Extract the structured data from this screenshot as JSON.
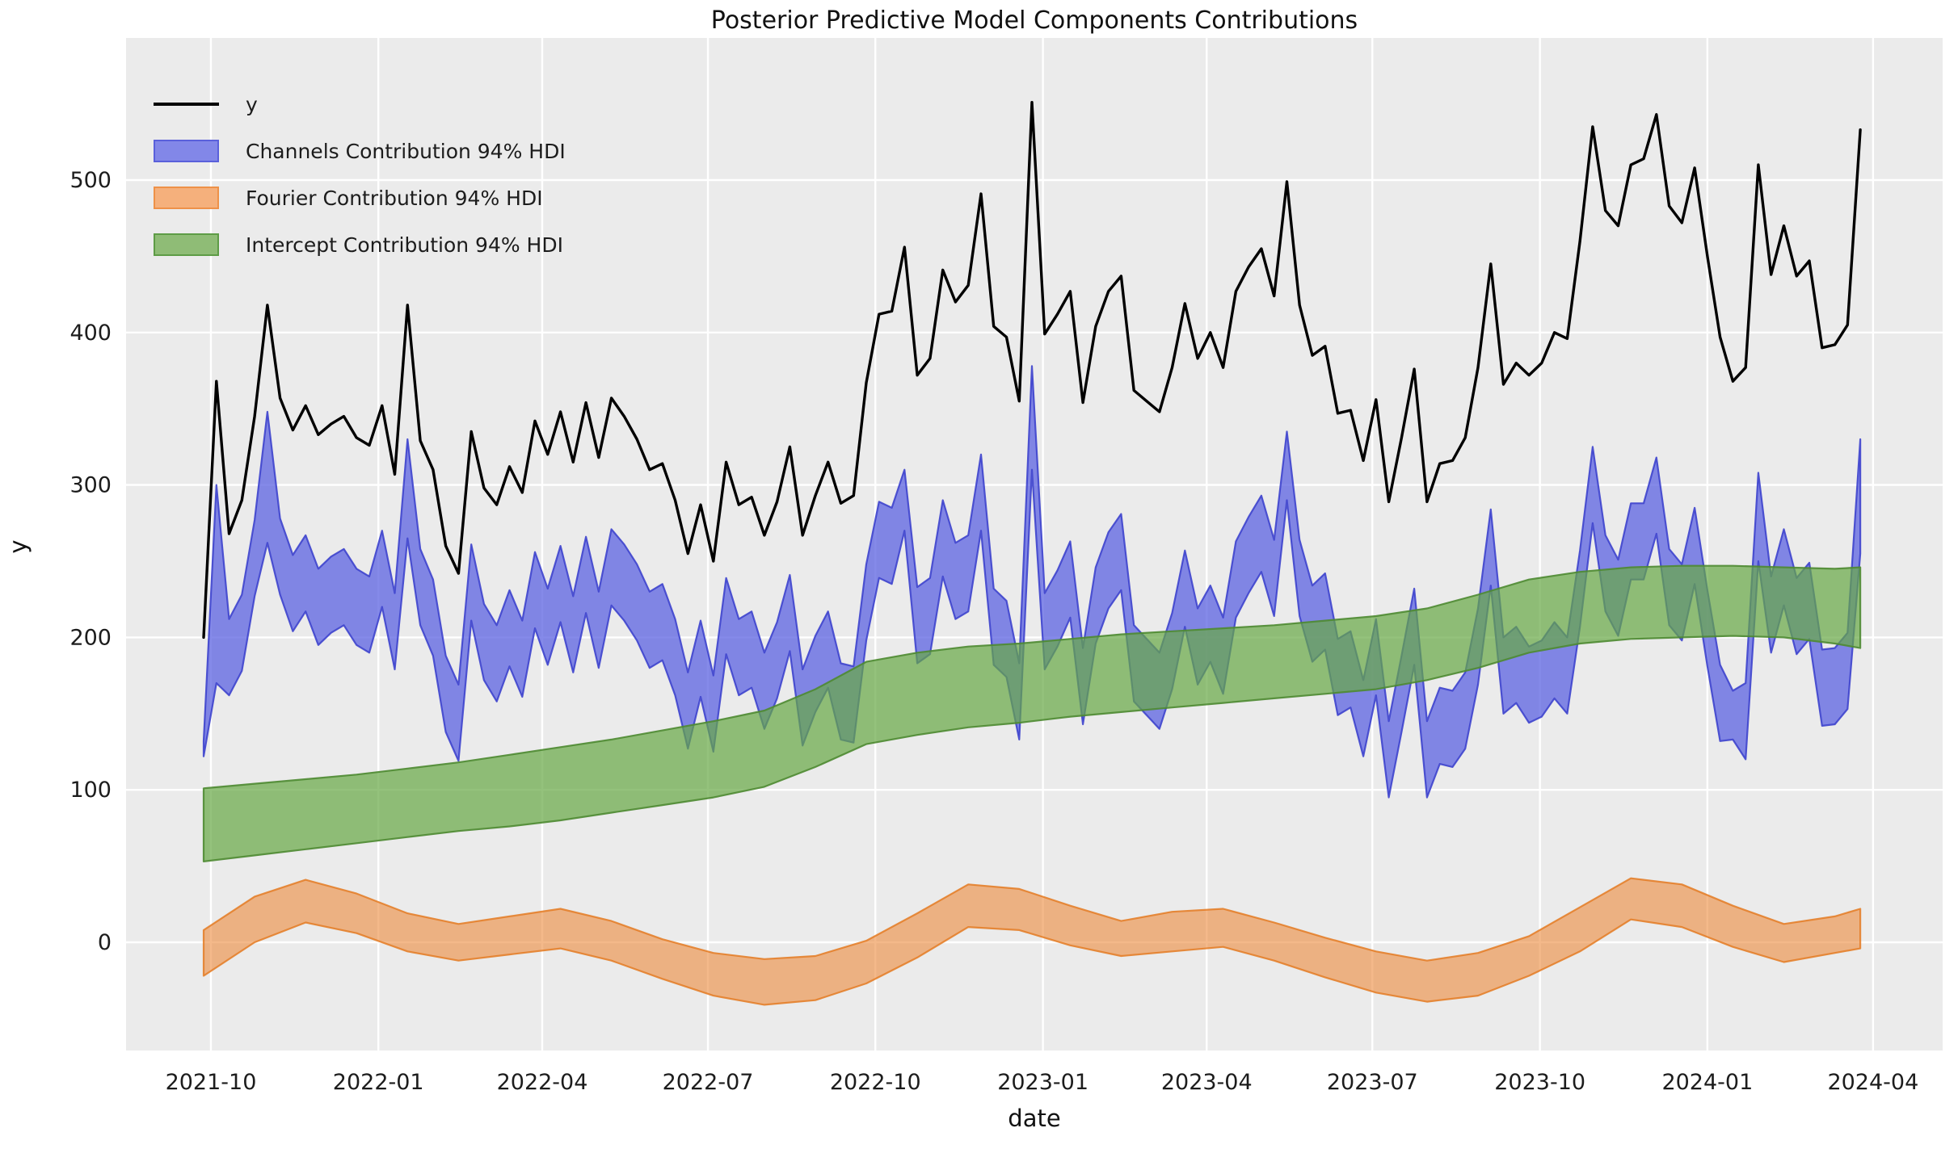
{
  "chart_data": {
    "type": "line+area-bands",
    "title": "Posterior Predictive Model Components Contributions",
    "xlabel": "date",
    "ylabel": "y",
    "x_unit": "weekly observations, week index from first point (2021-09-27) to last (2024-04)",
    "grid": true,
    "legend_position": "upper left",
    "axes": {
      "yticks": [
        0,
        100,
        200,
        300,
        400,
        500
      ],
      "xticks": [
        {
          "label": "2021-10",
          "week": 0.57
        },
        {
          "label": "2022-01",
          "week": 13.71
        },
        {
          "label": "2022-04",
          "week": 26.57
        },
        {
          "label": "2022-07",
          "week": 39.57
        },
        {
          "label": "2022-10",
          "week": 52.71
        },
        {
          "label": "2023-01",
          "week": 65.86
        },
        {
          "label": "2023-04",
          "week": 78.71
        },
        {
          "label": "2023-07",
          "week": 91.71
        },
        {
          "label": "2023-10",
          "week": 104.86
        },
        {
          "label": "2024-01",
          "week": 118.0
        },
        {
          "label": "2024-04",
          "week": 131.0
        }
      ],
      "ylim": [
        -71,
        593
      ]
    },
    "series": [
      {
        "name": "y",
        "kind": "line",
        "values": [
          200,
          368,
          268,
          290,
          345,
          418,
          357,
          336,
          352,
          333,
          340,
          345,
          331,
          326,
          352,
          307,
          418,
          329,
          310,
          260,
          242,
          335,
          298,
          287,
          312,
          295,
          342,
          320,
          348,
          315,
          354,
          318,
          357,
          345,
          330,
          310,
          314,
          290,
          255,
          287,
          250,
          315,
          287,
          292,
          267,
          289,
          325,
          267,
          293,
          315,
          288,
          293,
          367,
          412,
          414,
          456,
          372,
          383,
          441,
          420,
          431,
          491,
          404,
          397,
          355,
          551,
          399,
          412,
          427,
          354,
          404,
          427,
          437,
          362,
          355,
          348,
          377,
          419,
          383,
          400,
          377,
          427,
          443,
          455,
          424,
          499,
          418,
          385,
          391,
          347,
          349,
          316,
          356,
          289,
          331,
          376,
          289,
          314,
          316,
          331,
          377,
          445,
          366,
          380,
          372,
          380,
          400,
          396,
          460,
          535,
          480,
          470,
          510,
          514,
          543,
          483,
          472,
          508,
          450,
          397,
          368,
          377,
          510,
          438,
          470,
          437,
          447,
          390,
          392,
          405,
          533
        ]
      },
      {
        "name": "Channels Contribution 94% HDI",
        "kind": "band",
        "upper": [
          132,
          300,
          212,
          228,
          277,
          348,
          278,
          254,
          267,
          245,
          253,
          258,
          245,
          240,
          270,
          229,
          330,
          258,
          238,
          188,
          169,
          261,
          222,
          208,
          231,
          211,
          256,
          232,
          260,
          227,
          266,
          230,
          271,
          261,
          248,
          230,
          235,
          212,
          177,
          211,
          175,
          239,
          212,
          217,
          190,
          210,
          241,
          179,
          201,
          217,
          183,
          181,
          248,
          289,
          285,
          310,
          233,
          239,
          290,
          262,
          267,
          320,
          232,
          224,
          183,
          378,
          229,
          244,
          263,
          193,
          246,
          269,
          281,
          208,
          199,
          190,
          216,
          257,
          219,
          234,
          213,
          263,
          279,
          293,
          264,
          335,
          264,
          234,
          242,
          199,
          204,
          172,
          212,
          145,
          188,
          232,
          145,
          167,
          165,
          177,
          219,
          284,
          200,
          207,
          194,
          198,
          210,
          200,
          257,
          325,
          267,
          251,
          288,
          288,
          318,
          258,
          248,
          285,
          231,
          182,
          165,
          170,
          308,
          240,
          271,
          239,
          249,
          192,
          193,
          203,
          330
        ],
        "lower": [
          122,
          170,
          162,
          178,
          227,
          262,
          228,
          204,
          217,
          195,
          203,
          208,
          195,
          190,
          220,
          179,
          265,
          208,
          188,
          138,
          119,
          211,
          172,
          158,
          181,
          161,
          206,
          182,
          210,
          177,
          216,
          180,
          221,
          211,
          198,
          180,
          185,
          162,
          127,
          161,
          125,
          189,
          162,
          167,
          140,
          160,
          191,
          129,
          151,
          167,
          133,
          131,
          198,
          239,
          235,
          270,
          183,
          189,
          240,
          212,
          217,
          270,
          182,
          174,
          133,
          310,
          179,
          194,
          213,
          143,
          196,
          219,
          231,
          158,
          149,
          140,
          166,
          207,
          169,
          184,
          163,
          213,
          229,
          243,
          214,
          290,
          214,
          184,
          192,
          149,
          154,
          122,
          162,
          95,
          138,
          182,
          95,
          117,
          115,
          127,
          169,
          234,
          150,
          157,
          144,
          148,
          160,
          150,
          207,
          275,
          217,
          201,
          238,
          238,
          268,
          208,
          198,
          235,
          181,
          132,
          133,
          120,
          250,
          190,
          221,
          189,
          199,
          142,
          143,
          153,
          255
        ]
      },
      {
        "name": "Fourier Contribution 94% HDI",
        "kind": "band",
        "x": [
          0,
          4,
          8,
          12,
          16,
          20,
          24,
          28,
          32,
          36,
          40,
          44,
          48,
          52,
          56,
          60,
          64,
          68,
          72,
          76,
          80,
          84,
          88,
          92,
          96,
          100,
          104,
          108,
          112,
          116,
          120,
          124,
          128,
          130
        ],
        "upper": [
          8,
          30,
          41,
          32,
          19,
          12,
          17,
          22,
          14,
          2,
          -7,
          -11,
          -9,
          1,
          19,
          38,
          35,
          24,
          14,
          20,
          22,
          13,
          3,
          -6,
          -12,
          -7,
          4,
          23,
          42,
          38,
          24,
          12,
          17,
          22
        ],
        "lower": [
          -22,
          0,
          13,
          6,
          -6,
          -12,
          -8,
          -4,
          -12,
          -24,
          -35,
          -41,
          -38,
          -27,
          -10,
          10,
          8,
          -2,
          -9,
          -6,
          -3,
          -12,
          -23,
          -33,
          -39,
          -35,
          -22,
          -6,
          15,
          10,
          -3,
          -13,
          -7,
          -4
        ]
      },
      {
        "name": "Intercept Contribution 94% HDI",
        "kind": "band",
        "x": [
          0,
          4,
          8,
          12,
          16,
          20,
          24,
          28,
          32,
          36,
          40,
          44,
          48,
          52,
          56,
          60,
          64,
          68,
          72,
          76,
          80,
          84,
          88,
          92,
          96,
          100,
          104,
          108,
          112,
          116,
          120,
          124,
          128,
          130
        ],
        "upper": [
          101,
          104,
          107,
          110,
          114,
          118,
          123,
          128,
          133,
          139,
          145,
          152,
          166,
          184,
          190,
          194,
          196,
          199,
          202,
          204,
          206,
          208,
          211,
          214,
          219,
          228,
          238,
          243,
          246,
          247,
          247,
          246,
          245,
          246
        ],
        "lower": [
          53,
          57,
          61,
          65,
          69,
          73,
          76,
          80,
          85,
          90,
          95,
          102,
          115,
          130,
          136,
          141,
          144,
          148,
          151,
          154,
          157,
          160,
          163,
          166,
          172,
          180,
          190,
          196,
          199,
          200,
          201,
          200,
          196,
          193
        ]
      }
    ]
  },
  "legend": {
    "items": [
      {
        "label": "y",
        "swatch": "line",
        "color": "#000000"
      },
      {
        "label": "Channels Contribution 94% HDI",
        "swatch": "patch",
        "fill": "#8287e8",
        "edge": "#5a60db"
      },
      {
        "label": "Fourier Contribution 94% HDI",
        "swatch": "patch",
        "fill": "#f5b07c",
        "edge": "#ee9148"
      },
      {
        "label": "Intercept Contribution 94% HDI",
        "swatch": "patch",
        "fill": "#8fbc76",
        "edge": "#5e9c46"
      }
    ]
  },
  "colors": {
    "figure_background": "#ffffff",
    "axes_background": "#ebebeb",
    "gridline": "#ffffff",
    "y_line": "#000000",
    "channels_fill": "rgba(86,93,224,0.72)",
    "channels_edge": "rgba(62,68,205,0.9)",
    "fourier_fill": "rgba(238,142,66,0.62)",
    "fourier_edge": "rgba(228,123,35,0.85)",
    "intercept_fill": "rgba(103,168,68,0.7)",
    "intercept_edge": "rgba(78,138,50,0.9)",
    "tick_text": "#1c1c1c"
  }
}
